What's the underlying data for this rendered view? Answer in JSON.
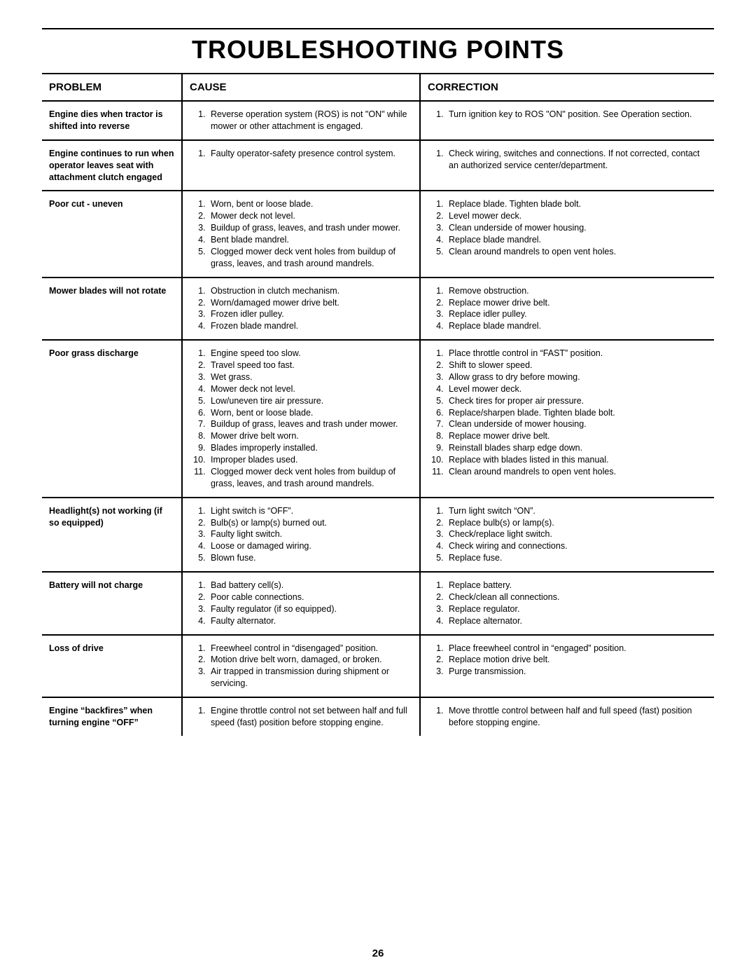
{
  "title": "TROUBLESHOOTING POINTS",
  "pageNumber": "26",
  "headers": {
    "problem": "PROBLEM",
    "cause": "CAUSE",
    "correction": "CORRECTION"
  },
  "rows": [
    {
      "problem": "Engine dies when tractor is shifted into reverse",
      "causes": [
        "Reverse operation system (ROS) is not \"ON\" while mower or other attachment is engaged."
      ],
      "corrections": [
        "Turn ignition key to ROS \"ON\" position. See Operation section."
      ]
    },
    {
      "problem": "Engine continues to run when operator leaves seat with attachment clutch engaged",
      "causes": [
        "Faulty operator-safety presence control system."
      ],
      "corrections": [
        "Check wiring, switches  and connections.  If not corrected, contact an authorized service center/department."
      ]
    },
    {
      "problem": "Poor cut - uneven",
      "causes": [
        "Worn, bent or loose blade.",
        "Mower deck not level.",
        "Buildup of grass, leaves, and trash under mower.",
        "Bent blade mandrel.",
        "Clogged mower deck vent holes from buildup of grass, leaves, and trash around mandrels."
      ],
      "corrections": [
        "Replace blade.  Tighten blade bolt.",
        "Level mower deck.",
        "Clean underside of mower housing.",
        "Replace blade mandrel.",
        "Clean around mandrels to open vent holes."
      ]
    },
    {
      "problem": "Mower blades will not rotate",
      "causes": [
        "Obstruction in clutch mechanism.",
        "Worn/damaged mower drive belt.",
        "Frozen idler pulley.",
        "Frozen blade mandrel."
      ],
      "corrections": [
        "Remove obstruction.",
        "Replace mower drive belt.",
        "Replace idler pulley.",
        "Replace blade mandrel."
      ]
    },
    {
      "problem": "Poor grass discharge",
      "causes": [
        "Engine speed too slow.",
        "Travel speed too fast.",
        "Wet grass.",
        "Mower deck not level.",
        "Low/uneven tire air pressure.",
        "Worn, bent or loose blade.",
        "Buildup of grass, leaves and trash under mower.",
        "Mower drive belt worn.",
        "Blades improperly installed.",
        "Improper blades used.",
        "Clogged mower deck vent holes from buildup of grass, leaves, and trash around mandrels."
      ],
      "corrections": [
        "Place throttle control in “FAST” position.",
        "Shift to slower speed.",
        "Allow grass to dry before mowing.",
        "Level mower deck.",
        "Check tires for proper air pressure.",
        "Replace/sharpen blade.  Tighten blade bolt.",
        "Clean underside of mower housing.",
        "Replace mower drive belt.",
        "Reinstall blades sharp edge down.",
        "Replace with blades listed in this manual.",
        "Clean around mandrels to open vent holes."
      ]
    },
    {
      "problem": "Headlight(s) not working (if so equipped)",
      "causes": [
        "Light switch is “OFF”.",
        "Bulb(s) or lamp(s) burned out.",
        "Faulty light switch.",
        "Loose or damaged wiring.",
        "Blown fuse."
      ],
      "corrections": [
        "Turn light switch “ON”.",
        "Replace bulb(s) or lamp(s).",
        "Check/replace light switch.",
        "Check wiring and connections.",
        "Replace fuse."
      ]
    },
    {
      "problem": "Battery will not charge",
      "causes": [
        "Bad battery cell(s).",
        "Poor cable connections.",
        "Faulty regulator (if so equipped).",
        "Faulty alternator."
      ],
      "corrections": [
        "Replace battery.",
        "Check/clean all connections.",
        "Replace regulator.",
        "Replace alternator."
      ]
    },
    {
      "problem": "Loss of drive",
      "causes": [
        "Freewheel control in “disengaged” position.",
        "Motion drive belt worn, damaged, or broken.",
        "Air trapped in transmission during shipment or servicing."
      ],
      "corrections": [
        "Place freewheel control in “engaged” position.",
        "Replace motion drive belt.",
        "Purge transmission."
      ]
    },
    {
      "problem": "Engine “backfires” when turning engine “OFF”",
      "causes": [
        "Engine throttle control not set between half and full speed (fast) position before stopping engine."
      ],
      "corrections": [
        "Move throttle control between half and full speed (fast) position before stopping engine."
      ]
    }
  ]
}
